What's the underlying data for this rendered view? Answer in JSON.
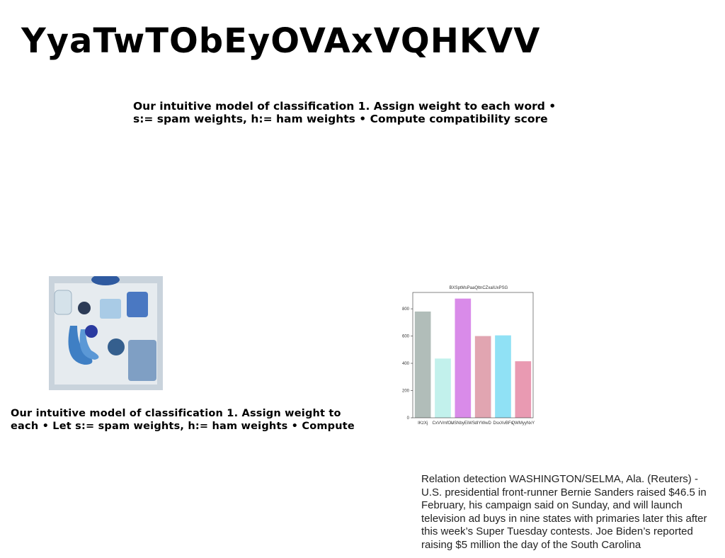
{
  "title": "YyaTwTObEyOVAxVQHKVV",
  "text_top": "Our intuitive model of classification 1. Assign weight to each word • s:= spam weights, h:= ham weights • Compute compatibility score",
  "text_left": "Our intuitive model of classification 1. Assign weight to each • Let s:= spam weights, h:= ham weights • Compute",
  "paragraph": "Relation detection WASHINGTON/SELMA, Ala. (Reuters) - U.S. presidential front-runner Bernie Sanders raised $46.5 in February, his campaign said on Sunday, and will launch television ad buys in nine states with primaries later this after this week’s Super Tuesday contests. Joe Biden’s reported raising $5 million the day of the South Carolina",
  "chart_data": {
    "type": "bar",
    "title": "BXSptMsPaaQltnCZxaIUxPSG",
    "categories": [
      "IKzXj",
      "CxVVmfOu",
      "USNbyEiWS",
      "dIYWwD",
      "DsxXvBFs",
      "QWMyyNxY"
    ],
    "values": [
      780,
      435,
      875,
      600,
      605,
      415
    ],
    "colors": [
      "#b1bdb9",
      "#c2f1ec",
      "#d98be9",
      "#e1a5b1",
      "#90e1f5",
      "#e99ab2"
    ],
    "ylim": [
      0,
      920
    ],
    "yticks": [
      0,
      200,
      400,
      600,
      800
    ]
  }
}
